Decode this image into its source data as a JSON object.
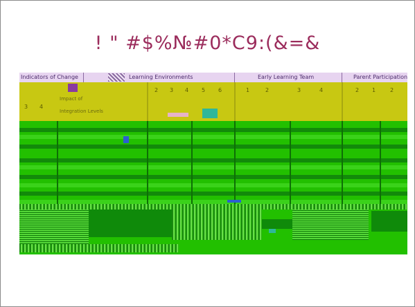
{
  "slide": {
    "title": "! \" #$%№#0*C9:(&=&"
  },
  "table": {
    "headers": [
      "Indicators of Change",
      "Learning Environments",
      "Early Learning Team",
      "Parent Participation"
    ],
    "rows": [
      {
        "left_nums": [
          "3",
          "4"
        ],
        "col_nums": [
          "2",
          "3",
          "4",
          "5",
          "6",
          "1",
          "2",
          "3",
          "4",
          "2",
          "1",
          "2"
        ]
      }
    ],
    "row_labels": [
      "Impact of",
      "Integration Levels"
    ]
  },
  "colors": {
    "title": "#9b2c5c",
    "header_bg": "#e7d4f0",
    "yellow_band": "#c8c812",
    "green_bg": "#22c000"
  }
}
